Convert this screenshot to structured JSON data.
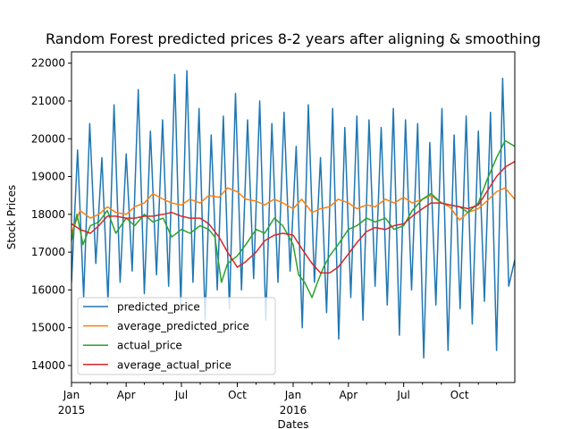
{
  "chart_data": {
    "type": "line",
    "title": "Random Forest predicted prices 8-2 years after aligning & smoothing",
    "xlabel": "Dates",
    "ylabel": "Stock Prices",
    "x_start": "2015-01-01",
    "x_end": "2016-12-31",
    "ylim": [
      13550,
      22300
    ],
    "y_ticks": [
      {
        "value": 14000,
        "label": "14000"
      },
      {
        "value": 15000,
        "label": "15000"
      },
      {
        "value": 16000,
        "label": "16000"
      },
      {
        "value": 17000,
        "label": "17000"
      },
      {
        "value": 18000,
        "label": "18000"
      },
      {
        "value": 19000,
        "label": "19000"
      },
      {
        "value": 20000,
        "label": "20000"
      },
      {
        "value": 21000,
        "label": "21000"
      },
      {
        "value": 22000,
        "label": "22000"
      }
    ],
    "x_ticks": [
      {
        "date": "2015-01-01",
        "label": "Jan",
        "sublabel": "2015"
      },
      {
        "date": "2015-04-01",
        "label": "Apr",
        "sublabel": ""
      },
      {
        "date": "2015-07-01",
        "label": "Jul",
        "sublabel": ""
      },
      {
        "date": "2015-10-01",
        "label": "Oct",
        "sublabel": ""
      },
      {
        "date": "2016-01-01",
        "label": "Jan",
        "sublabel": "2016"
      },
      {
        "date": "2016-04-01",
        "label": "Apr",
        "sublabel": ""
      },
      {
        "date": "2016-07-01",
        "label": "Jul",
        "sublabel": ""
      },
      {
        "date": "2016-10-01",
        "label": "Oct",
        "sublabel": ""
      }
    ],
    "x_minor_ticks": [
      "2015-02-01",
      "2015-03-01",
      "2015-05-01",
      "2015-06-01",
      "2015-08-01",
      "2015-09-01",
      "2015-11-01",
      "2015-12-01",
      "2016-02-01",
      "2016-03-01",
      "2016-05-01",
      "2016-06-01",
      "2016-08-01",
      "2016-09-01",
      "2016-11-01",
      "2016-12-01"
    ],
    "grid": false,
    "legend_position": "lower-left",
    "series": [
      {
        "name": "predicted_price",
        "color": "#1f77b4",
        "x": [
          "2015-01-01",
          "2015-01-11",
          "2015-01-21",
          "2015-01-31",
          "2015-02-10",
          "2015-02-20",
          "2015-03-02",
          "2015-03-12",
          "2015-03-22",
          "2015-04-01",
          "2015-04-11",
          "2015-04-21",
          "2015-05-01",
          "2015-05-11",
          "2015-05-21",
          "2015-05-31",
          "2015-06-10",
          "2015-06-20",
          "2015-06-30",
          "2015-07-10",
          "2015-07-20",
          "2015-07-30",
          "2015-08-09",
          "2015-08-19",
          "2015-08-29",
          "2015-09-08",
          "2015-09-18",
          "2015-09-28",
          "2015-10-08",
          "2015-10-18",
          "2015-10-28",
          "2015-11-07",
          "2015-11-17",
          "2015-11-27",
          "2015-12-07",
          "2015-12-17",
          "2015-12-27",
          "2016-01-06",
          "2016-01-16",
          "2016-01-26",
          "2016-02-05",
          "2016-02-15",
          "2016-02-25",
          "2016-03-06",
          "2016-03-16",
          "2016-03-26",
          "2016-04-05",
          "2016-04-15",
          "2016-04-25",
          "2016-05-05",
          "2016-05-15",
          "2016-05-25",
          "2016-06-04",
          "2016-06-14",
          "2016-06-24",
          "2016-07-04",
          "2016-07-14",
          "2016-07-24",
          "2016-08-03",
          "2016-08-13",
          "2016-08-23",
          "2016-09-02",
          "2016-09-12",
          "2016-09-22",
          "2016-10-02",
          "2016-10-12",
          "2016-10-22",
          "2016-11-01",
          "2016-11-11",
          "2016-11-21",
          "2016-12-01",
          "2016-12-11",
          "2016-12-21",
          "2016-12-31"
        ],
        "values": [
          16200,
          19700,
          15800,
          20400,
          16700,
          19500,
          15700,
          20900,
          16200,
          19600,
          16500,
          21300,
          15900,
          20200,
          16400,
          20500,
          16100,
          21700,
          15600,
          21800,
          16200,
          20800,
          15200,
          20100,
          16000,
          20600,
          15500,
          21200,
          16000,
          20500,
          16300,
          21000,
          15200,
          20400,
          16200,
          20700,
          16500,
          19800,
          15000,
          20900,
          16200,
          19500,
          15400,
          20800,
          14700,
          20300,
          15800,
          20600,
          15200,
          20500,
          16100,
          20300,
          15600,
          20800,
          14800,
          20500,
          16000,
          20400,
          14200,
          19900,
          15600,
          20800,
          14400,
          20100,
          15500,
          20600,
          15100,
          20200,
          15700,
          20700,
          14400,
          21600,
          16100,
          16800
        ]
      },
      {
        "name": "average_predicted_price",
        "color": "#ff7f0e",
        "x": [
          "2015-01-01",
          "2015-01-15",
          "2015-02-01",
          "2015-02-15",
          "2015-03-01",
          "2015-03-15",
          "2015-04-01",
          "2015-04-15",
          "2015-05-01",
          "2015-05-15",
          "2015-06-01",
          "2015-06-15",
          "2015-07-01",
          "2015-07-15",
          "2015-08-01",
          "2015-08-15",
          "2015-09-01",
          "2015-09-15",
          "2015-10-01",
          "2015-10-15",
          "2015-11-01",
          "2015-11-15",
          "2015-12-01",
          "2015-12-15",
          "2016-01-01",
          "2016-01-15",
          "2016-02-01",
          "2016-02-15",
          "2016-03-01",
          "2016-03-15",
          "2016-04-01",
          "2016-04-15",
          "2016-05-01",
          "2016-05-15",
          "2016-06-01",
          "2016-06-15",
          "2016-07-01",
          "2016-07-15",
          "2016-08-01",
          "2016-08-15",
          "2016-09-01",
          "2016-09-15",
          "2016-10-01",
          "2016-10-15",
          "2016-11-01",
          "2016-11-15",
          "2016-12-01",
          "2016-12-15",
          "2016-12-31"
        ],
        "values": [
          17500,
          18100,
          17900,
          18000,
          18200,
          18050,
          18000,
          18200,
          18300,
          18550,
          18400,
          18300,
          18250,
          18400,
          18300,
          18500,
          18450,
          18700,
          18600,
          18400,
          18350,
          18250,
          18400,
          18300,
          18150,
          18400,
          18050,
          18150,
          18200,
          18400,
          18300,
          18150,
          18250,
          18200,
          18400,
          18300,
          18450,
          18300,
          18400,
          18500,
          18300,
          18200,
          17850,
          18050,
          18150,
          18350,
          18600,
          18700,
          18400
        ]
      },
      {
        "name": "actual_price",
        "color": "#2ca02c",
        "x": [
          "2015-01-01",
          "2015-01-10",
          "2015-01-20",
          "2015-02-01",
          "2015-02-15",
          "2015-03-01",
          "2015-03-15",
          "2015-04-01",
          "2015-04-15",
          "2015-05-01",
          "2015-05-15",
          "2015-06-01",
          "2015-06-15",
          "2015-07-01",
          "2015-07-15",
          "2015-08-01",
          "2015-08-15",
          "2015-08-25",
          "2015-09-05",
          "2015-09-15",
          "2015-10-01",
          "2015-10-15",
          "2015-11-01",
          "2015-11-15",
          "2015-12-01",
          "2015-12-15",
          "2016-01-01",
          "2016-01-10",
          "2016-01-20",
          "2016-02-01",
          "2016-02-10",
          "2016-02-20",
          "2016-03-01",
          "2016-03-15",
          "2016-04-01",
          "2016-04-15",
          "2016-05-01",
          "2016-05-15",
          "2016-06-01",
          "2016-06-15",
          "2016-07-01",
          "2016-07-15",
          "2016-08-01",
          "2016-08-15",
          "2016-09-01",
          "2016-09-15",
          "2016-10-01",
          "2016-10-15",
          "2016-11-01",
          "2016-11-15",
          "2016-12-01",
          "2016-12-15",
          "2016-12-31"
        ],
        "values": [
          17300,
          18000,
          17200,
          17700,
          17800,
          18100,
          17500,
          17900,
          17700,
          18000,
          17800,
          17900,
          17400,
          17600,
          17500,
          17700,
          17600,
          17400,
          16200,
          16700,
          16900,
          17200,
          17600,
          17500,
          17900,
          17700,
          17200,
          16400,
          16200,
          15800,
          16200,
          16600,
          16900,
          17200,
          17600,
          17700,
          17900,
          17800,
          17900,
          17600,
          17700,
          18100,
          18400,
          18550,
          18300,
          18250,
          18200,
          18050,
          18300,
          18900,
          19500,
          19950,
          19800
        ]
      },
      {
        "name": "average_actual_price",
        "color": "#d62728",
        "x": [
          "2015-01-01",
          "2015-01-15",
          "2015-02-01",
          "2015-02-15",
          "2015-03-01",
          "2015-03-15",
          "2015-04-01",
          "2015-04-15",
          "2015-05-01",
          "2015-05-15",
          "2015-06-01",
          "2015-06-15",
          "2015-07-01",
          "2015-07-15",
          "2015-08-01",
          "2015-08-15",
          "2015-09-01",
          "2015-09-15",
          "2015-10-01",
          "2015-10-15",
          "2015-11-01",
          "2015-11-15",
          "2015-12-01",
          "2015-12-15",
          "2016-01-01",
          "2016-01-15",
          "2016-02-01",
          "2016-02-15",
          "2016-03-01",
          "2016-03-15",
          "2016-04-01",
          "2016-04-15",
          "2016-05-01",
          "2016-05-15",
          "2016-06-01",
          "2016-06-15",
          "2016-07-01",
          "2016-07-15",
          "2016-08-01",
          "2016-08-15",
          "2016-09-01",
          "2016-09-15",
          "2016-10-01",
          "2016-10-15",
          "2016-11-01",
          "2016-11-15",
          "2016-12-01",
          "2016-12-15",
          "2016-12-31"
        ],
        "values": [
          17750,
          17600,
          17500,
          17700,
          17950,
          17950,
          17900,
          17900,
          17950,
          17950,
          18000,
          18050,
          17950,
          17900,
          17900,
          17750,
          17400,
          17000,
          16600,
          16750,
          17000,
          17300,
          17450,
          17500,
          17450,
          17100,
          16700,
          16450,
          16450,
          16600,
          16950,
          17250,
          17550,
          17650,
          17600,
          17700,
          17750,
          17950,
          18150,
          18300,
          18300,
          18250,
          18200,
          18150,
          18250,
          18600,
          19000,
          19250,
          19400
        ]
      }
    ]
  }
}
